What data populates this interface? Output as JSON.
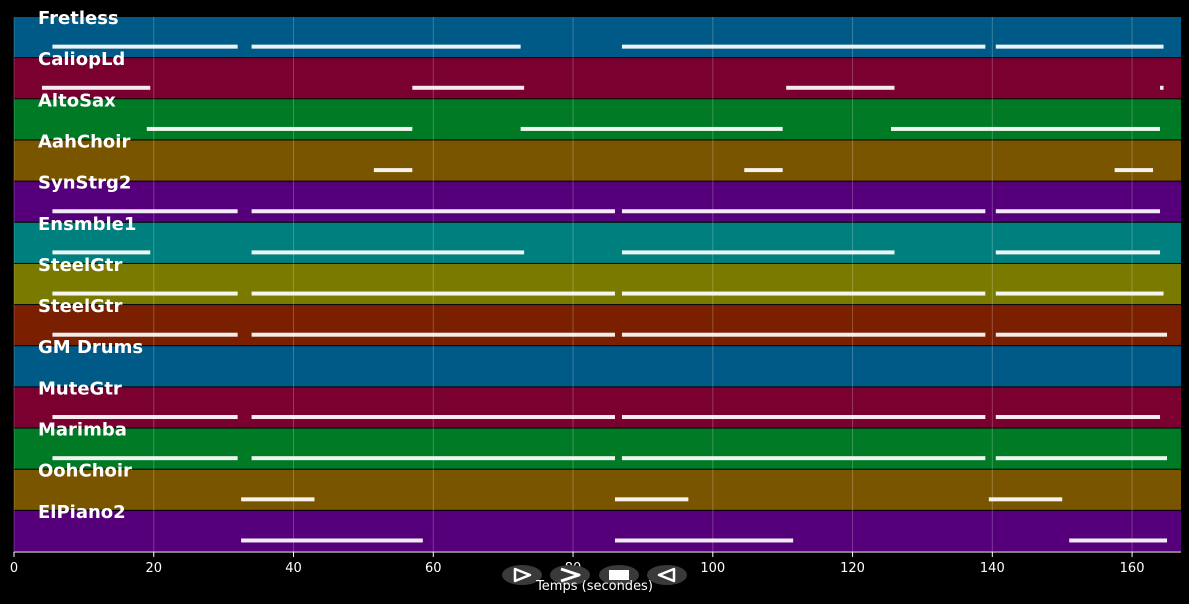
{
  "chart_data": {
    "type": "piano-roll",
    "xlabel": "Temps (secondes)",
    "xlim": [
      0,
      167
    ],
    "xticks": [
      0,
      20,
      40,
      60,
      80,
      100,
      120,
      140,
      160
    ],
    "grid": true,
    "tracks": [
      {
        "name": "Fretless",
        "color": "#005a87",
        "notes": [
          [
            5.5,
            32
          ],
          [
            34,
            72.5
          ],
          [
            87,
            139
          ],
          [
            140.5,
            164.5
          ]
        ]
      },
      {
        "name": "CaliopLd",
        "color": "#7a0030",
        "notes": [
          [
            4,
            19.5
          ],
          [
            57,
            73
          ],
          [
            110.5,
            126
          ],
          [
            164,
            164.5
          ]
        ]
      },
      {
        "name": "AltoSax",
        "color": "#007a25",
        "notes": [
          [
            19,
            57
          ],
          [
            72.5,
            110
          ],
          [
            125.5,
            164
          ]
        ]
      },
      {
        "name": "AahChoir",
        "color": "#7a5500",
        "notes": [
          [
            51.5,
            57
          ],
          [
            104.5,
            110
          ],
          [
            157.5,
            163
          ]
        ]
      },
      {
        "name": "SynStrg2",
        "color": "#55007a",
        "notes": [
          [
            5.5,
            32
          ],
          [
            34,
            86
          ],
          [
            87,
            139
          ],
          [
            140.5,
            164
          ]
        ]
      },
      {
        "name": "Ensmble1",
        "color": "#007f7f",
        "notes": [
          [
            5.5,
            19.5
          ],
          [
            34,
            73
          ],
          [
            87,
            126
          ],
          [
            140.5,
            164
          ]
        ]
      },
      {
        "name": "SteelGtr",
        "color": "#7a7a00",
        "notes": [
          [
            5.5,
            32
          ],
          [
            34,
            86
          ],
          [
            87,
            139
          ],
          [
            140.5,
            164.5
          ]
        ]
      },
      {
        "name": "SteelGtr",
        "color": "#7a2000",
        "notes": [
          [
            5.5,
            32
          ],
          [
            34,
            86
          ],
          [
            87,
            139
          ],
          [
            140.5,
            165
          ]
        ]
      },
      {
        "name": "GM Drums",
        "color": "#005a87",
        "notes": []
      },
      {
        "name": "MuteGtr",
        "color": "#7a0030",
        "notes": [
          [
            5.5,
            32
          ],
          [
            34,
            86
          ],
          [
            87,
            139
          ],
          [
            140.5,
            164
          ]
        ]
      },
      {
        "name": "Marimba",
        "color": "#007a25",
        "notes": [
          [
            5.5,
            32
          ],
          [
            34,
            86
          ],
          [
            87,
            139
          ],
          [
            140.5,
            165
          ]
        ]
      },
      {
        "name": "OohChoir",
        "color": "#7a5500",
        "notes": [
          [
            32.5,
            43
          ],
          [
            86,
            96.5
          ],
          [
            139.5,
            150
          ]
        ]
      },
      {
        "name": "ElPiano2",
        "color": "#55007a",
        "notes": [
          [
            32.5,
            58.5
          ],
          [
            86,
            111.5
          ],
          [
            151,
            165
          ]
        ]
      }
    ]
  },
  "controls": {
    "play_icon": "play-icon",
    "fast_forward_icon": "fast-forward-icon",
    "stop_icon": "stop-icon",
    "rewind_icon": "rewind-icon"
  }
}
